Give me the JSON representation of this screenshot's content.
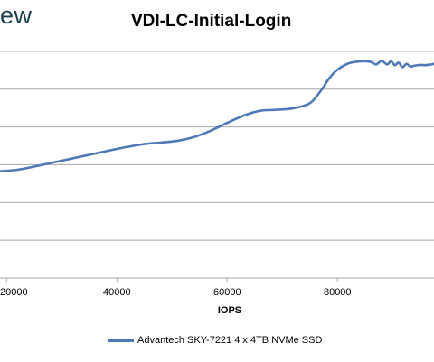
{
  "branding": {
    "logo_text_visible": "ew"
  },
  "chart_data": {
    "type": "line",
    "title": "VDI-LC-Initial-Login",
    "xlabel": "IOPS",
    "ylabel": "",
    "xlim": [
      18800,
      97500
    ],
    "ylim": [
      0,
      1.05
    ],
    "grid": {
      "horizontal": true,
      "vertical": false
    },
    "y_gridlines": [
      0.15,
      0.3,
      0.45,
      0.6,
      0.75,
      0.9
    ],
    "x_ticks": [
      20000,
      40000,
      60000,
      80000
    ],
    "x_tick_labels": [
      "20000",
      "40000",
      "60000",
      "80000"
    ],
    "legend_position": "bottom",
    "series": [
      {
        "name": "Advantech SKY-7221 4 x 4TB NVMe SSD",
        "color": "#4f79b6",
        "x": [
          18800,
          20000,
          22000,
          24000,
          27000,
          30000,
          33000,
          36000,
          39000,
          42000,
          45000,
          48000,
          51000,
          54000,
          57000,
          60000,
          63000,
          66000,
          69000,
          72000,
          75000,
          77000,
          78500,
          80000,
          82000,
          84000,
          86000,
          87000,
          88000,
          89000,
          89700,
          90400,
          91100,
          91800,
          92500,
          93200,
          94000,
          95000,
          96000,
          97000,
          97500
        ],
        "y": [
          0.424,
          0.426,
          0.43,
          0.438,
          0.452,
          0.466,
          0.48,
          0.494,
          0.508,
          0.521,
          0.532,
          0.538,
          0.545,
          0.56,
          0.585,
          0.616,
          0.645,
          0.664,
          0.668,
          0.674,
          0.694,
          0.744,
          0.793,
          0.827,
          0.852,
          0.86,
          0.858,
          0.848,
          0.862,
          0.848,
          0.86,
          0.845,
          0.855,
          0.837,
          0.85,
          0.84,
          0.843,
          0.846,
          0.845,
          0.848,
          0.85
        ]
      }
    ]
  }
}
